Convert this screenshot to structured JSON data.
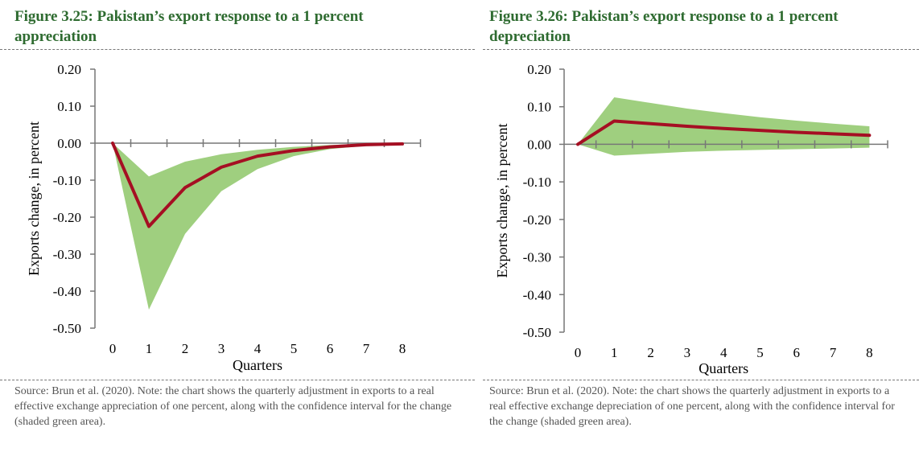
{
  "charts": [
    {
      "title": "Figure 3.25: Pakistan’s export response to a 1 percent appreciation",
      "note": "Source: Brun et al. (2020). Note: the chart shows the quarterly adjustment in exports to a real effective exchange appreciation of one percent, along with the confidence interval for the change (shaded green area)."
    },
    {
      "title": "Figure 3.26: Pakistan’s export response to a 1 percent depreciation",
      "note": "Source: Brun et al. (2020). Note: the chart shows the quarterly adjustment in exports to a real effective exchange depreciation of one percent, along with the confidence interval for the change (shaded green area)."
    }
  ],
  "colors": {
    "line": "#a50f23",
    "band": "#9fcf7f",
    "title": "#2e6b30"
  },
  "chart_data": [
    {
      "type": "line",
      "title": "Figure 3.25: Pakistan’s export response to a 1 percent appreciation",
      "xlabel": "Quarters",
      "ylabel": "Exports change, in percent",
      "x": [
        0,
        1,
        2,
        3,
        4,
        5,
        6,
        7,
        8
      ],
      "ylim": [
        -0.5,
        0.2
      ],
      "yticks": [
        "0.20",
        "0.10",
        "0.00",
        "-0.10",
        "-0.20",
        "-0.30",
        "-0.40",
        "-0.50"
      ],
      "ytick_values": [
        0.2,
        0.1,
        0.0,
        -0.1,
        -0.2,
        -0.3,
        -0.4,
        -0.5
      ],
      "series": [
        {
          "values": [
            0.0,
            -0.225,
            -0.12,
            -0.065,
            -0.035,
            -0.02,
            -0.01,
            -0.004,
            -0.002
          ]
        }
      ],
      "band": {
        "upper": [
          0.0,
          -0.09,
          -0.05,
          -0.03,
          -0.018,
          -0.01,
          -0.005,
          -0.002,
          -0.001
        ],
        "lower": [
          0.0,
          -0.45,
          -0.245,
          -0.13,
          -0.07,
          -0.035,
          -0.016,
          -0.007,
          -0.003
        ]
      },
      "grid": false
    },
    {
      "type": "line",
      "title": "Figure 3.26: Pakistan’s export response to a 1 percent depreciation",
      "xlabel": "Quarters",
      "ylabel": "Exports change, in percent",
      "x": [
        0,
        1,
        2,
        3,
        4,
        5,
        6,
        7,
        8
      ],
      "ylim": [
        -0.5,
        0.2
      ],
      "yticks": [
        "0.20",
        "0.10",
        "0.00",
        "-0.10",
        "-0.20",
        "-0.30",
        "-0.40",
        "-0.50"
      ],
      "ytick_values": [
        0.2,
        0.1,
        0.0,
        -0.1,
        -0.2,
        -0.3,
        -0.4,
        -0.5
      ],
      "series": [
        {
          "values": [
            0.0,
            0.062,
            0.055,
            0.048,
            0.042,
            0.037,
            0.032,
            0.028,
            0.024
          ]
        }
      ],
      "band": {
        "upper": [
          0.0,
          0.125,
          0.11,
          0.095,
          0.083,
          0.072,
          0.063,
          0.055,
          0.048
        ],
        "lower": [
          0.0,
          -0.03,
          -0.025,
          -0.02,
          -0.017,
          -0.015,
          -0.013,
          -0.011,
          -0.009
        ]
      },
      "grid": false
    }
  ]
}
